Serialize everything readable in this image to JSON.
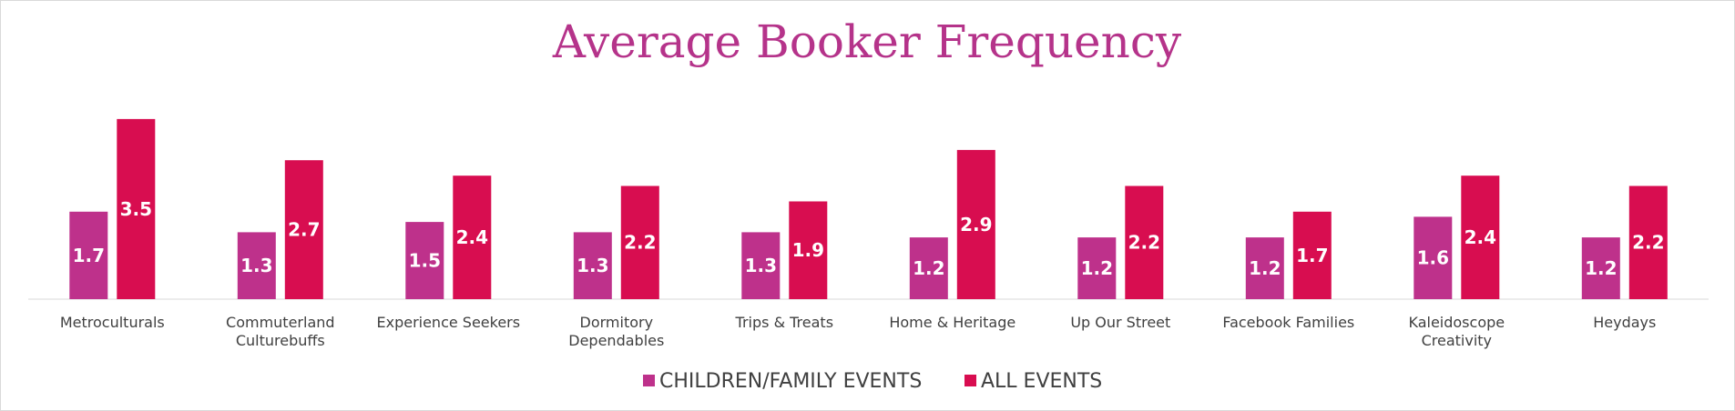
{
  "colors": {
    "title": "#B5338A",
    "children_family": "#BE318B",
    "all_events": "#D80D50",
    "axis": "#D9D9D9"
  },
  "chart_data": {
    "type": "bar",
    "title": "Average Booker Frequency",
    "xlabel": "",
    "ylabel": "",
    "ylim": [
      0,
      4
    ],
    "grid": false,
    "legend_position": "bottom",
    "categories": [
      "Metroculturals",
      "Commuterland Culturebuffs",
      "Experience Seekers",
      "Dormitory Dependables",
      "Trips & Treats",
      "Home & Heritage",
      "Up Our Street",
      "Facebook Families",
      "Kaleidoscope Creativity",
      "Heydays"
    ],
    "category_lines": [
      [
        "Metroculturals"
      ],
      [
        "Commuterland",
        "Culturebuffs"
      ],
      [
        "Experience Seekers"
      ],
      [
        "Dormitory",
        "Dependables"
      ],
      [
        "Trips & Treats"
      ],
      [
        "Home & Heritage"
      ],
      [
        "Up Our Street"
      ],
      [
        "Facebook Families"
      ],
      [
        "Kaleidoscope",
        "Creativity"
      ],
      [
        "Heydays"
      ]
    ],
    "series": [
      {
        "name": "CHILDREN/FAMILY EVENTS",
        "color_key": "children_family",
        "values": [
          1.7,
          1.3,
          1.5,
          1.3,
          1.3,
          1.2,
          1.2,
          1.2,
          1.6,
          1.2
        ]
      },
      {
        "name": "ALL EVENTS",
        "color_key": "all_events",
        "values": [
          3.5,
          2.7,
          2.4,
          2.2,
          1.9,
          2.9,
          2.2,
          1.7,
          2.4,
          2.2
        ]
      }
    ]
  }
}
